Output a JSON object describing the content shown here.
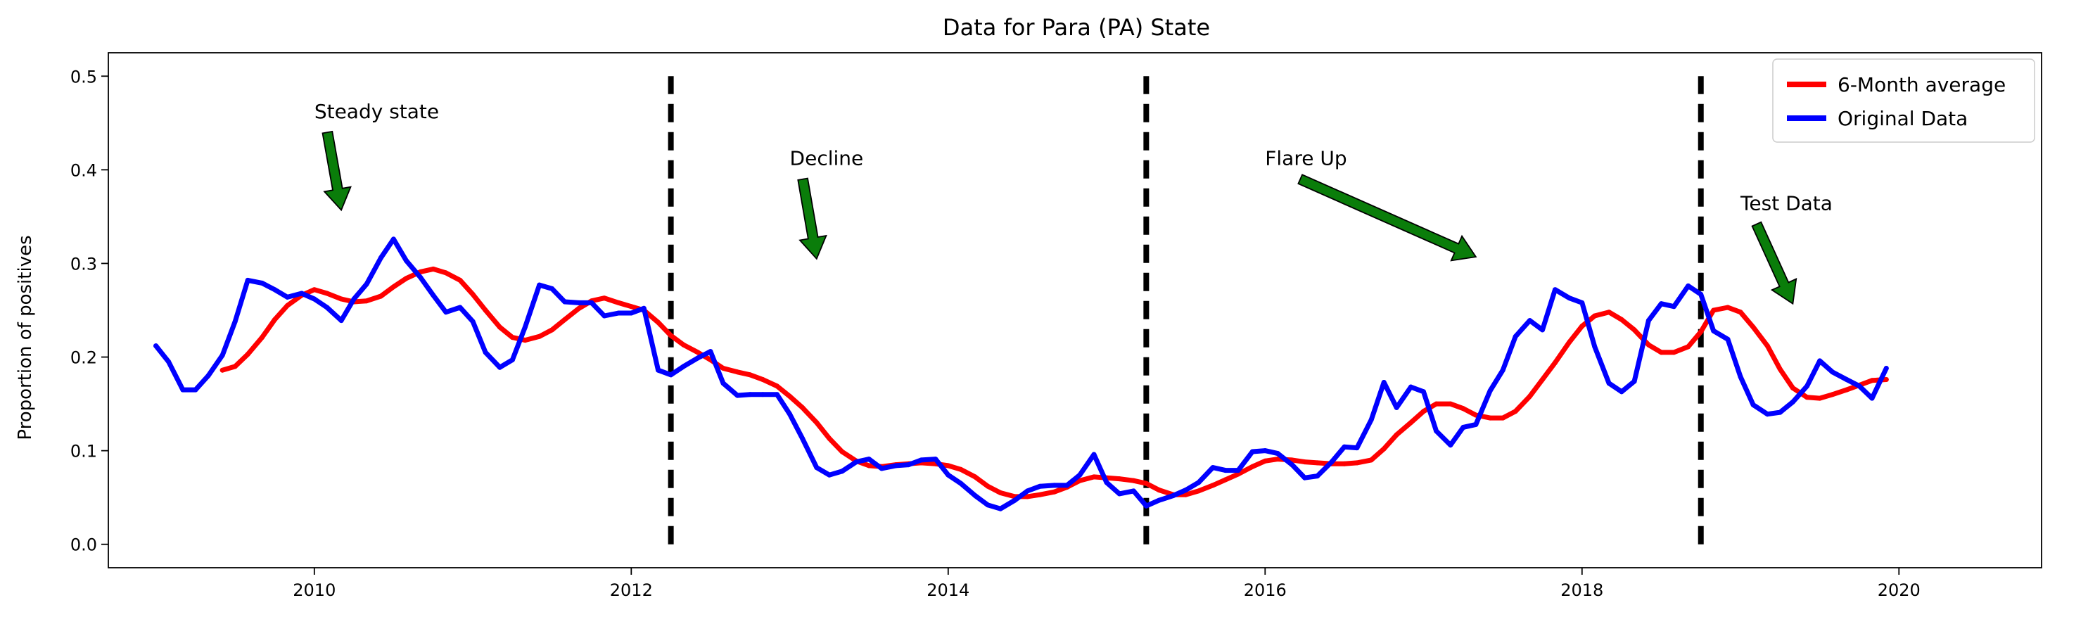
{
  "colors": {
    "average": "#ff0000",
    "original": "#0000ff",
    "arrow_fill": "#0a7d0a",
    "vline": "#000000"
  },
  "chart_data": {
    "type": "line",
    "title": "Data for Para (PA) State",
    "xlabel": "",
    "ylabel": "Proportion of positives",
    "xlim": [
      2008.7,
      2020.9
    ],
    "ylim": [
      -0.025,
      0.525
    ],
    "xticks": [
      2010,
      2012,
      2014,
      2016,
      2018,
      2020
    ],
    "yticks": [
      0.0,
      0.1,
      0.2,
      0.3,
      0.4,
      0.5
    ],
    "xtick_labels": [
      "2010",
      "2012",
      "2014",
      "2016",
      "2018",
      "2020"
    ],
    "ytick_labels": [
      "0.0",
      "0.1",
      "0.2",
      "0.3",
      "0.4",
      "0.5"
    ],
    "grid": false,
    "legend_position": "top-right",
    "vertical_lines": [
      {
        "x": 2012.25,
        "y_range": [
          0.0,
          0.5
        ],
        "style": "dashed"
      },
      {
        "x": 2015.25,
        "y_range": [
          0.0,
          0.5
        ],
        "style": "dashed"
      },
      {
        "x": 2018.75,
        "y_range": [
          0.0,
          0.5
        ],
        "style": "dashed"
      }
    ],
    "annotations": [
      {
        "text": "Steady state",
        "text_pos": [
          2010.0,
          0.455
        ],
        "arrow_tip": [
          2010.17,
          0.357
        ]
      },
      {
        "text": "Decline",
        "text_pos": [
          2013.0,
          0.405
        ],
        "arrow_tip": [
          2013.17,
          0.305
        ]
      },
      {
        "text": "Flare Up",
        "text_pos": [
          2016.0,
          0.405
        ],
        "arrow_tip": [
          2017.33,
          0.307
        ]
      },
      {
        "text": "Test Data",
        "text_pos": [
          2019.0,
          0.357
        ],
        "arrow_tip": [
          2019.33,
          0.257
        ]
      }
    ],
    "series": [
      {
        "name": "6-Month average",
        "color": "#ff0000",
        "x": [
          2009.42,
          2009.5,
          2009.58,
          2009.67,
          2009.75,
          2009.83,
          2009.92,
          2010.0,
          2010.08,
          2010.17,
          2010.25,
          2010.33,
          2010.42,
          2010.5,
          2010.58,
          2010.67,
          2010.75,
          2010.83,
          2010.92,
          2011.0,
          2011.08,
          2011.17,
          2011.25,
          2011.33,
          2011.42,
          2011.5,
          2011.58,
          2011.67,
          2011.75,
          2011.83,
          2011.92,
          2012.0,
          2012.08,
          2012.17,
          2012.25,
          2012.33,
          2012.42,
          2012.5,
          2012.58,
          2012.67,
          2012.75,
          2012.83,
          2012.92,
          2013.0,
          2013.08,
          2013.17,
          2013.25,
          2013.33,
          2013.42,
          2013.5,
          2013.58,
          2013.67,
          2013.75,
          2013.83,
          2013.92,
          2014.0,
          2014.08,
          2014.17,
          2014.25,
          2014.33,
          2014.42,
          2014.5,
          2014.58,
          2014.67,
          2014.75,
          2014.83,
          2014.92,
          2015.0,
          2015.08,
          2015.17,
          2015.25,
          2015.33,
          2015.42,
          2015.5,
          2015.58,
          2015.67,
          2015.75,
          2015.83,
          2015.92,
          2016.0,
          2016.08,
          2016.17,
          2016.25,
          2016.33,
          2016.42,
          2016.5,
          2016.58,
          2016.67,
          2016.75,
          2016.83,
          2016.92,
          2017.0,
          2017.08,
          2017.17,
          2017.25,
          2017.33,
          2017.42,
          2017.5,
          2017.58,
          2017.67,
          2017.75,
          2017.83,
          2017.92,
          2018.0,
          2018.08,
          2018.17,
          2018.25,
          2018.33,
          2018.42,
          2018.5,
          2018.58,
          2018.67,
          2018.75,
          2018.83,
          2018.92,
          2019.0,
          2019.08,
          2019.17,
          2019.25,
          2019.33,
          2019.42,
          2019.5,
          2019.58,
          2019.67,
          2019.75,
          2019.83,
          2019.92
        ],
        "values": [
          0.186,
          0.19,
          0.203,
          0.221,
          0.24,
          0.255,
          0.266,
          0.272,
          0.268,
          0.262,
          0.259,
          0.26,
          0.265,
          0.275,
          0.284,
          0.291,
          0.294,
          0.29,
          0.282,
          0.267,
          0.25,
          0.232,
          0.221,
          0.218,
          0.222,
          0.229,
          0.24,
          0.252,
          0.26,
          0.263,
          0.258,
          0.254,
          0.25,
          0.237,
          0.223,
          0.213,
          0.205,
          0.197,
          0.188,
          0.184,
          0.181,
          0.176,
          0.169,
          0.158,
          0.146,
          0.13,
          0.113,
          0.099,
          0.089,
          0.084,
          0.083,
          0.085,
          0.086,
          0.087,
          0.086,
          0.084,
          0.08,
          0.072,
          0.062,
          0.055,
          0.051,
          0.051,
          0.053,
          0.056,
          0.061,
          0.068,
          0.072,
          0.071,
          0.07,
          0.068,
          0.065,
          0.058,
          0.053,
          0.053,
          0.057,
          0.063,
          0.069,
          0.075,
          0.083,
          0.089,
          0.091,
          0.09,
          0.088,
          0.087,
          0.086,
          0.086,
          0.087,
          0.09,
          0.102,
          0.117,
          0.13,
          0.142,
          0.15,
          0.15,
          0.145,
          0.138,
          0.135,
          0.135,
          0.142,
          0.158,
          0.176,
          0.194,
          0.216,
          0.233,
          0.244,
          0.248,
          0.24,
          0.229,
          0.213,
          0.205,
          0.205,
          0.211,
          0.227,
          0.25,
          0.253,
          0.248,
          0.232,
          0.212,
          0.187,
          0.167,
          0.157,
          0.156,
          0.16,
          0.165,
          0.17,
          0.175,
          0.176
        ]
      },
      {
        "name": "Original Data",
        "color": "#0000ff",
        "x": [
          2009.0,
          2009.08,
          2009.17,
          2009.25,
          2009.33,
          2009.42,
          2009.5,
          2009.58,
          2009.67,
          2009.75,
          2009.83,
          2009.92,
          2010.0,
          2010.08,
          2010.17,
          2010.25,
          2010.33,
          2010.42,
          2010.5,
          2010.58,
          2010.67,
          2010.75,
          2010.83,
          2010.92,
          2011.0,
          2011.08,
          2011.17,
          2011.25,
          2011.33,
          2011.42,
          2011.5,
          2011.58,
          2011.67,
          2011.75,
          2011.83,
          2011.92,
          2012.0,
          2012.08,
          2012.17,
          2012.25,
          2012.33,
          2012.42,
          2012.5,
          2012.58,
          2012.67,
          2012.75,
          2012.83,
          2012.92,
          2013.0,
          2013.08,
          2013.17,
          2013.25,
          2013.33,
          2013.42,
          2013.5,
          2013.58,
          2013.67,
          2013.75,
          2013.83,
          2013.92,
          2014.0,
          2014.08,
          2014.17,
          2014.25,
          2014.33,
          2014.42,
          2014.5,
          2014.58,
          2014.67,
          2014.75,
          2014.83,
          2014.92,
          2015.0,
          2015.08,
          2015.17,
          2015.25,
          2015.33,
          2015.42,
          2015.5,
          2015.58,
          2015.67,
          2015.75,
          2015.83,
          2015.92,
          2016.0,
          2016.08,
          2016.17,
          2016.25,
          2016.33,
          2016.42,
          2016.5,
          2016.58,
          2016.67,
          2016.75,
          2016.83,
          2016.92,
          2017.0,
          2017.08,
          2017.17,
          2017.25,
          2017.33,
          2017.42,
          2017.5,
          2017.58,
          2017.67,
          2017.75,
          2017.83,
          2017.92,
          2018.0,
          2018.08,
          2018.17,
          2018.25,
          2018.33,
          2018.42,
          2018.5,
          2018.58,
          2018.67,
          2018.75,
          2018.83,
          2018.92,
          2019.0,
          2019.08,
          2019.17,
          2019.25,
          2019.33,
          2019.42,
          2019.5,
          2019.58,
          2019.67,
          2019.75,
          2019.83,
          2019.92
        ],
        "values": [
          0.212,
          0.195,
          0.165,
          0.165,
          0.18,
          0.202,
          0.238,
          0.282,
          0.279,
          0.272,
          0.264,
          0.268,
          0.262,
          0.253,
          0.239,
          0.262,
          0.278,
          0.306,
          0.326,
          0.303,
          0.285,
          0.266,
          0.248,
          0.253,
          0.238,
          0.205,
          0.189,
          0.197,
          0.232,
          0.277,
          0.273,
          0.259,
          0.258,
          0.258,
          0.244,
          0.247,
          0.247,
          0.252,
          0.186,
          0.181,
          0.19,
          0.199,
          0.206,
          0.172,
          0.159,
          0.16,
          0.16,
          0.16,
          0.139,
          0.113,
          0.082,
          0.074,
          0.078,
          0.088,
          0.091,
          0.081,
          0.084,
          0.085,
          0.09,
          0.091,
          0.074,
          0.065,
          0.052,
          0.042,
          0.038,
          0.047,
          0.057,
          0.062,
          0.063,
          0.063,
          0.074,
          0.096,
          0.066,
          0.054,
          0.057,
          0.041,
          0.047,
          0.052,
          0.058,
          0.066,
          0.082,
          0.079,
          0.079,
          0.099,
          0.1,
          0.097,
          0.085,
          0.071,
          0.073,
          0.088,
          0.104,
          0.103,
          0.133,
          0.173,
          0.146,
          0.168,
          0.163,
          0.121,
          0.106,
          0.125,
          0.128,
          0.164,
          0.186,
          0.222,
          0.239,
          0.229,
          0.272,
          0.263,
          0.258,
          0.211,
          0.172,
          0.163,
          0.174,
          0.239,
          0.257,
          0.254,
          0.276,
          0.267,
          0.228,
          0.219,
          0.179,
          0.149,
          0.139,
          0.141,
          0.152,
          0.169,
          0.196,
          0.184,
          0.176,
          0.169,
          0.156,
          0.188
        ]
      }
    ]
  }
}
